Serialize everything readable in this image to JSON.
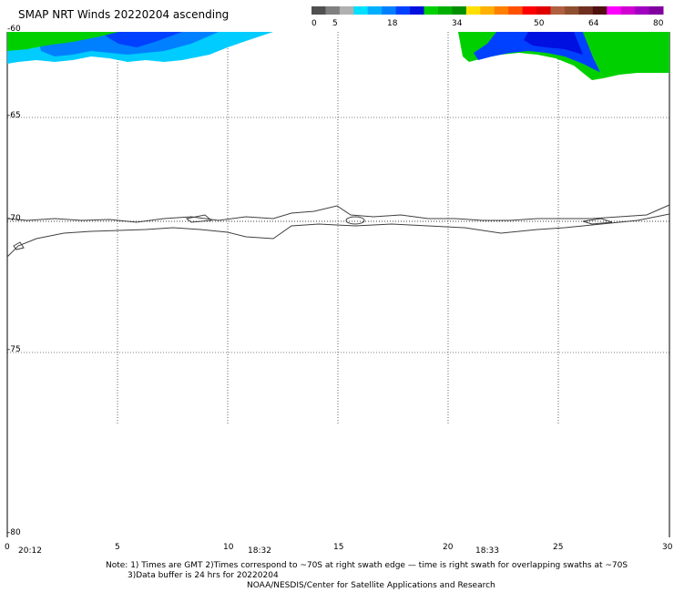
{
  "title": "SMAP NRT Winds 20220204 ascending",
  "color_scale": {
    "labels": [
      "0",
      "5",
      "18",
      "34",
      "50",
      "64",
      "80"
    ],
    "segments": [
      {
        "color": "#505050"
      },
      {
        "color": "#808080"
      },
      {
        "color": "#b0b0b0"
      },
      {
        "color": "#00e0ff"
      },
      {
        "color": "#00b0ff"
      },
      {
        "color": "#0080ff"
      },
      {
        "color": "#0040ff"
      },
      {
        "color": "#0010e0"
      },
      {
        "color": "#00d000"
      },
      {
        "color": "#00b000"
      },
      {
        "color": "#009000"
      },
      {
        "color": "#ffe000"
      },
      {
        "color": "#ffb000"
      },
      {
        "color": "#ff8000"
      },
      {
        "color": "#ff5000"
      },
      {
        "color": "#ff0000"
      },
      {
        "color": "#e00000"
      },
      {
        "color": "#b06040"
      },
      {
        "color": "#905030"
      },
      {
        "color": "#703020"
      },
      {
        "color": "#501010"
      },
      {
        "color": "#ff00ff"
      },
      {
        "color": "#d000d0"
      },
      {
        "color": "#a000c0"
      },
      {
        "color": "#8000a0"
      }
    ]
  },
  "axes": {
    "y_ticks": [
      "-60",
      "-65",
      "-70",
      "-75",
      "-80"
    ],
    "x_ticks": [
      "0",
      "5",
      "10",
      "15",
      "20",
      "25",
      "30"
    ],
    "times": [
      "20:12",
      "18:32",
      "18:33"
    ]
  },
  "notes": [
    "Note: 1) Times are GMT 2)Times correspond to ~70S at right swath edge — time is right swath for overlapping swaths at ~70S",
    "3)Data buffer is 24 hrs for 20220204",
    "NOAA/NESDIS/Center for Satellite Applications and Research"
  ]
}
